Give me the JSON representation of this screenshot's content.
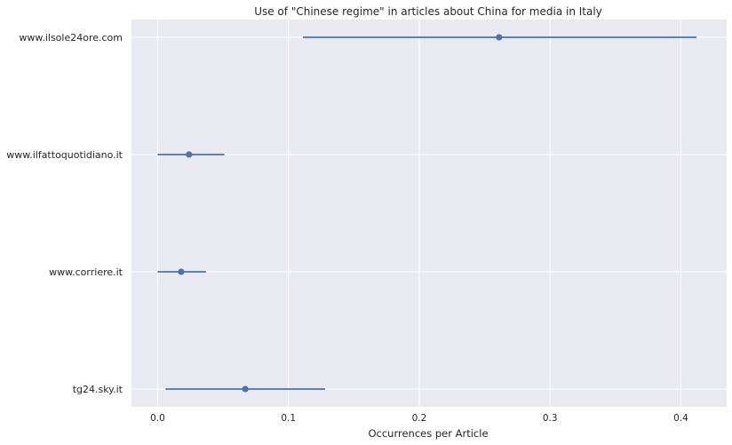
{
  "chart_data": {
    "type": "scatter",
    "title": "Use of \"Chinese regime\" in articles about China for media in Italy",
    "xlabel": "Occurrences per Article",
    "ylabel": "",
    "xlim": [
      -0.02,
      0.435
    ],
    "xticks": [
      0.0,
      0.1,
      0.2,
      0.3,
      0.4
    ],
    "xtick_labels": [
      "0.0",
      "0.1",
      "0.2",
      "0.3",
      "0.4"
    ],
    "grid": true,
    "colors": {
      "background": "#e9e9f1",
      "grid": "#ffffff",
      "marker": "#4c72b0"
    },
    "series": [
      {
        "points": [
          {
            "category": "www.ilsole24ore.com",
            "value": 0.261,
            "ci_low": 0.111,
            "ci_high": 0.412
          },
          {
            "category": "www.ilfattoquotidiano.it",
            "value": 0.024,
            "ci_low": 0.0,
            "ci_high": 0.051
          },
          {
            "category": "www.corriere.it",
            "value": 0.018,
            "ci_low": 0.0,
            "ci_high": 0.037
          },
          {
            "category": "tg24.sky.it",
            "value": 0.067,
            "ci_low": 0.006,
            "ci_high": 0.128
          }
        ]
      }
    ]
  }
}
